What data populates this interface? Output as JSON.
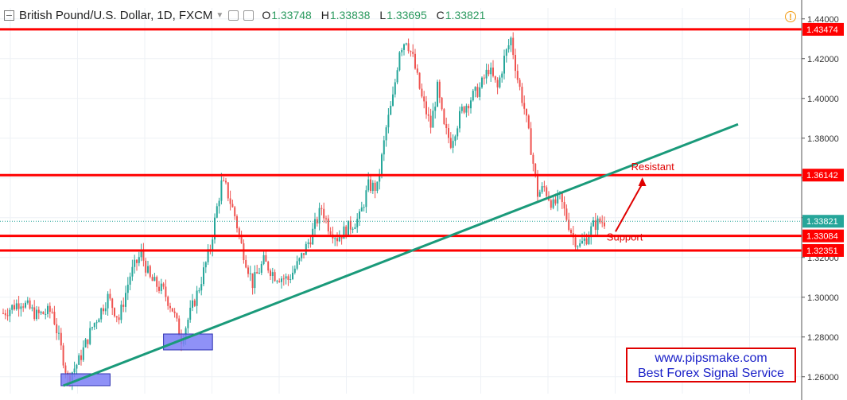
{
  "header": {
    "symbol": "British Pound/U.S. Dollar, 1D, FXCM",
    "o_label": "O",
    "o_value": "1.33748",
    "h_label": "H",
    "h_value": "1.33838",
    "l_label": "L",
    "l_value": "1.33695",
    "c_label": "C",
    "c_value": "1.33821",
    "warning_icon": "!"
  },
  "promo": {
    "line1": "www.pipsmake.com",
    "line2": "Best Forex Signal Service"
  },
  "colors": {
    "up": "#26a69a",
    "down": "#ef5350",
    "levels": "#ff0000",
    "trendline": "#1a9a7a",
    "zone": "#7b7ef6",
    "promo_text": "#1a20c8"
  },
  "chart_data": {
    "type": "candlestick",
    "title": "British Pound/U.S. Dollar, 1D, FXCM",
    "ylim": [
      1.2515,
      1.4455
    ],
    "yticks": [
      1.26,
      1.28,
      1.3,
      1.32,
      1.34,
      1.36,
      1.38,
      1.4,
      1.42,
      1.44
    ],
    "ytick_labels": [
      "1.26000",
      "1.28000",
      "1.30000",
      "1.32000",
      "1.34000",
      "1.36000",
      "1.38000",
      "1.40000",
      "1.42000",
      "1.44000"
    ],
    "x": {
      "bars": 240
    },
    "close_path": [
      [
        0,
        1.292
      ],
      [
        8,
        1.298
      ],
      [
        15,
        1.291
      ],
      [
        22,
        1.293
      ],
      [
        26,
        1.274
      ],
      [
        29,
        1.259
      ],
      [
        34,
        1.268
      ],
      [
        40,
        1.285
      ],
      [
        47,
        1.3
      ],
      [
        52,
        1.289
      ],
      [
        57,
        1.311
      ],
      [
        62,
        1.322
      ],
      [
        66,
        1.309
      ],
      [
        72,
        1.303
      ],
      [
        76,
        1.294
      ],
      [
        80,
        1.279
      ],
      [
        84,
        1.292
      ],
      [
        88,
        1.305
      ],
      [
        93,
        1.325
      ],
      [
        96,
        1.345
      ],
      [
        98,
        1.357
      ],
      [
        100,
        1.355
      ],
      [
        104,
        1.341
      ],
      [
        107,
        1.326
      ],
      [
        112,
        1.307
      ],
      [
        117,
        1.318
      ],
      [
        122,
        1.311
      ],
      [
        128,
        1.309
      ],
      [
        133,
        1.318
      ],
      [
        138,
        1.33
      ],
      [
        143,
        1.345
      ],
      [
        146,
        1.336
      ],
      [
        150,
        1.33
      ],
      [
        155,
        1.335
      ],
      [
        160,
        1.34
      ],
      [
        164,
        1.356
      ],
      [
        168,
        1.355
      ],
      [
        172,
        1.385
      ],
      [
        175,
        1.4
      ],
      [
        178,
        1.425
      ],
      [
        181,
        1.43
      ],
      [
        184,
        1.42
      ],
      [
        188,
        1.4
      ],
      [
        192,
        1.386
      ],
      [
        195,
        1.405
      ],
      [
        198,
        1.385
      ],
      [
        201,
        1.378
      ],
      [
        206,
        1.394
      ],
      [
        210,
        1.4
      ],
      [
        214,
        1.405
      ],
      [
        218,
        1.415
      ],
      [
        222,
        1.405
      ],
      [
        225,
        1.42
      ],
      [
        228,
        1.43
      ],
      [
        231,
        1.41
      ],
      [
        234,
        1.395
      ],
      [
        237,
        1.375
      ],
      [
        240,
        1.352
      ]
    ],
    "tail_path": [
      [
        240,
        1.352
      ],
      [
        243,
        1.355
      ],
      [
        247,
        1.346
      ],
      [
        250,
        1.35
      ],
      [
        253,
        1.34
      ],
      [
        256,
        1.33
      ],
      [
        259,
        1.326
      ],
      [
        262,
        1.33
      ],
      [
        265,
        1.336
      ],
      [
        268,
        1.338
      ],
      [
        270,
        1.3382
      ]
    ],
    "levels": [
      {
        "value": 1.43474,
        "label": "1.43474",
        "color": "#ff0000"
      },
      {
        "value": 1.36142,
        "label": "1.36142",
        "color": "#ff0000"
      },
      {
        "value": 1.33084,
        "label": "1.33084",
        "color": "#ff0000"
      },
      {
        "value": 1.32351,
        "label": "1.32351",
        "color": "#ff0000"
      }
    ],
    "last_price": {
      "value": 1.33821,
      "label": "1.33821",
      "color": "#26a69a"
    },
    "trendline": {
      "from": [
        27,
        1.2555
      ],
      "to": [
        330,
        1.387
      ],
      "color": "#1a9a7a"
    },
    "zones": [
      {
        "x0": 26,
        "x1": 48,
        "y0": 1.2555,
        "y1": 1.2615
      },
      {
        "x0": 72,
        "x1": 94,
        "y0": 1.2735,
        "y1": 1.2815
      }
    ],
    "annotations": [
      {
        "text": "Resistant",
        "x": 282,
        "y": 1.364,
        "color": "#e00000"
      },
      {
        "text": "Support",
        "x": 271,
        "y": 1.3285,
        "color": "#e00000"
      }
    ],
    "arrow": {
      "from": [
        275,
        1.333
      ],
      "to": [
        287,
        1.3595
      ],
      "color": "#e00000"
    }
  }
}
